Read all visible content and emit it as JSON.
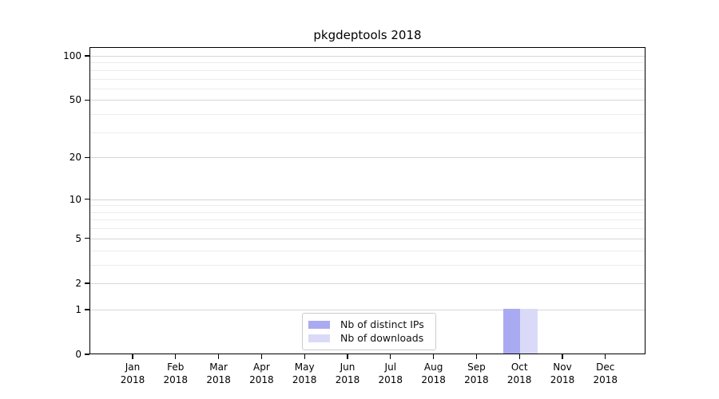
{
  "chart_data": {
    "type": "bar",
    "title": "pkgdeptools 2018",
    "categories": [
      "Jan",
      "Feb",
      "Mar",
      "Apr",
      "May",
      "Jun",
      "Jul",
      "Aug",
      "Sep",
      "Oct",
      "Nov",
      "Dec"
    ],
    "category_year": "2018",
    "series": [
      {
        "name": "Nb of distinct IPs",
        "color": "#aaaaf2",
        "values": [
          0,
          0,
          0,
          0,
          0,
          0,
          0,
          0,
          0,
          1,
          0,
          0
        ]
      },
      {
        "name": "Nb of downloads",
        "color": "#dadaf8",
        "values": [
          0,
          0,
          0,
          0,
          0,
          0,
          0,
          0,
          0,
          1,
          0,
          0
        ]
      }
    ],
    "y_axis": {
      "scale": "log1p",
      "ticks": [
        0,
        1,
        2,
        5,
        10,
        20,
        50,
        100
      ],
      "minor_ticks": [
        3,
        4,
        6,
        7,
        8,
        9,
        30,
        40,
        60,
        70,
        80,
        90
      ],
      "max": 100
    },
    "x_axis": {
      "label_line1": "month",
      "label_line2": "year"
    },
    "legend": {
      "position": "bottom-center",
      "entries": [
        "Nb of distinct IPs",
        "Nb of downloads"
      ]
    },
    "grid": true,
    "colors": {
      "major_grid": "#d6d6d6",
      "minor_grid": "#ececec",
      "spine": "#000000",
      "background": "#ffffff"
    }
  }
}
